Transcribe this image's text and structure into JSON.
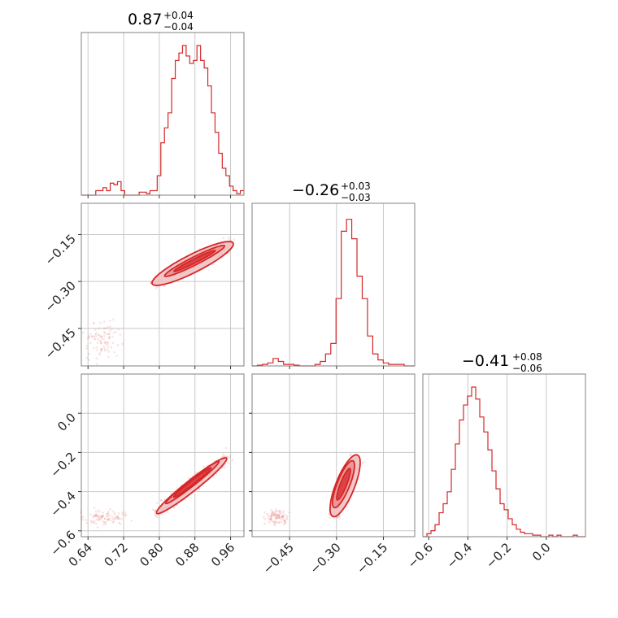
{
  "chart_data": {
    "type": "corner",
    "colors": {
      "series": "#d62728",
      "grid": "#c8c8c8",
      "frame": "#808080"
    },
    "parameters": [
      {
        "title_value": "0.87",
        "title_plus": "+0.04",
        "title_minus": "−0.04",
        "range": [
          0.625,
          0.99
        ],
        "ticks": [
          0.64,
          0.72,
          0.8,
          0.88,
          0.96
        ],
        "tick_labels": [
          "0.64",
          "0.72",
          "0.80",
          "0.88",
          "0.96"
        ],
        "hist": [
          0,
          0,
          0,
          0,
          0.03,
          0.03,
          0.05,
          0.03,
          0.08,
          0.07,
          0.09,
          0.03,
          0,
          0,
          0,
          0,
          0.02,
          0.02,
          0.01,
          0.03,
          0.03,
          0.13,
          0.35,
          0.45,
          0.55,
          0.78,
          0.9,
          0.95,
          1.0,
          0.93,
          0.88,
          0.9,
          1.0,
          0.9,
          0.85,
          0.73,
          0.55,
          0.42,
          0.28,
          0.18,
          0.13,
          0.06,
          0.03,
          0.01,
          0.03
        ]
      },
      {
        "title_value": "−0.26",
        "title_plus": "+0.03",
        "title_minus": "−0.03",
        "range": [
          -0.57,
          -0.05
        ],
        "ticks": [
          -0.45,
          -0.3,
          -0.15
        ],
        "tick_labels": [
          "−0.45",
          "−0.30",
          "−0.15"
        ],
        "hist": [
          0,
          0.005,
          0.01,
          0.02,
          0.05,
          0.03,
          0.01,
          0.01,
          0.005,
          0,
          0,
          0,
          0.01,
          0.03,
          0.08,
          0.15,
          0.45,
          0.9,
          0.98,
          0.85,
          0.6,
          0.45,
          0.2,
          0.08,
          0.04,
          0.02,
          0.01,
          0.01,
          0.01,
          0,
          0
        ]
      },
      {
        "title_value": "−0.41",
        "title_plus": "+0.08",
        "title_minus": "−0.06",
        "range": [
          -0.63,
          0.2
        ],
        "ticks": [
          -0.6,
          -0.4,
          -0.2,
          0.0
        ],
        "tick_labels": [
          "−0.6",
          "−0.4",
          "−0.2",
          "0.0"
        ],
        "hist": [
          0,
          0.02,
          0.04,
          0.08,
          0.16,
          0.22,
          0.3,
          0.45,
          0.62,
          0.78,
          0.88,
          0.94,
          1.0,
          0.92,
          0.8,
          0.7,
          0.58,
          0.44,
          0.32,
          0.22,
          0.18,
          0.12,
          0.08,
          0.05,
          0.03,
          0.02,
          0.02,
          0.01,
          0.01,
          0,
          0,
          0.01,
          0,
          0.01,
          0,
          0,
          0,
          0.01,
          0,
          0
        ]
      }
    ],
    "pairs": [
      {
        "x_param": 0,
        "y_param": 1,
        "core": {
          "start": [
            0.795,
            -0.3
          ],
          "end": [
            0.955,
            -0.185
          ],
          "halfwidth": [
            0.018,
            0.008,
            0.003
          ]
        },
        "tail": {
          "center": [
            0.675,
            -0.49
          ],
          "spread": [
            0.03,
            0.045
          ]
        }
      },
      {
        "x_param": 0,
        "y_param": 2,
        "core": {
          "start": [
            0.8,
            -0.5
          ],
          "end": [
            0.945,
            -0.24
          ],
          "halfwidth": [
            0.018,
            0.01,
            0.004
          ]
        },
        "tail": {
          "center": [
            0.68,
            -0.53
          ],
          "spread": [
            0.035,
            0.03
          ]
        }
      },
      {
        "x_param": 1,
        "y_param": 2,
        "core": {
          "start": [
            -0.305,
            -0.5
          ],
          "end": [
            -0.24,
            -0.24
          ],
          "halfwidth": [
            0.03,
            0.02,
            0.01
          ]
        },
        "tail": {
          "center": [
            -0.49,
            -0.53
          ],
          "spread": [
            0.03,
            0.03
          ]
        }
      }
    ]
  }
}
